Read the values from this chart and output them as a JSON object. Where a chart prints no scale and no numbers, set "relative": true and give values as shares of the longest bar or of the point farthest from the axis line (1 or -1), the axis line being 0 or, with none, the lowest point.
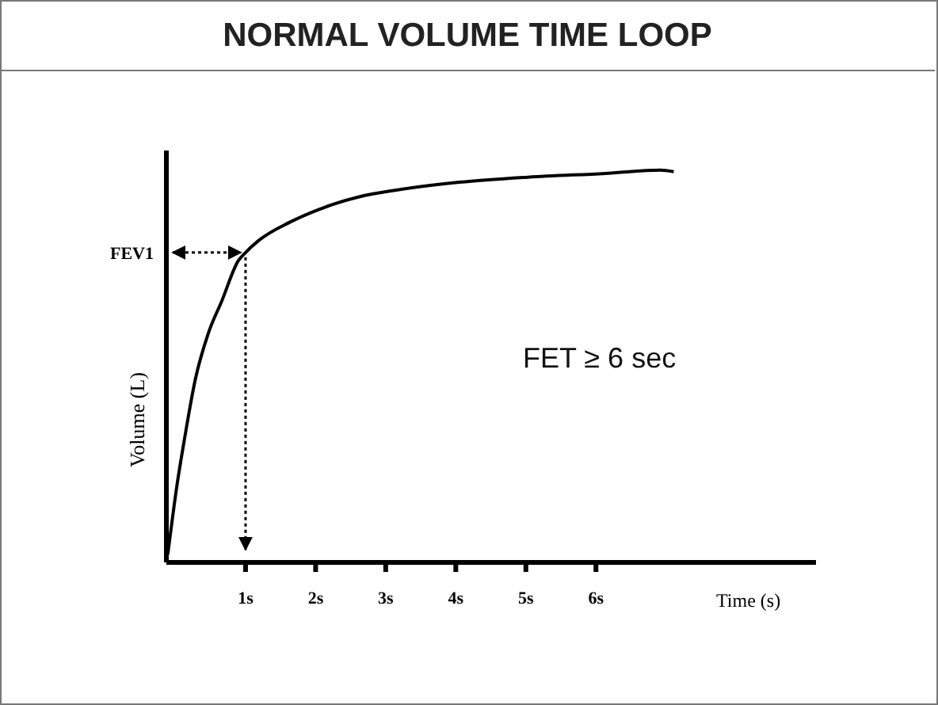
{
  "chart_data": {
    "type": "line",
    "title": "NORMAL VOLUME TIME LOOP",
    "xlabel": "Time (s)",
    "ylabel": "Volume (L)",
    "relative": true,
    "x": [
      -0.11,
      0.02,
      0.13,
      0.28,
      0.47,
      0.66,
      0.9,
      1.0,
      1.19,
      1.64,
      2.02,
      2.62,
      3.15,
      4.05,
      5.03,
      6.17,
      6.92,
      7.11
    ],
    "series": [
      {
        "color": "#000000",
        "values": [
          0.02,
          0.195,
          0.316,
          0.464,
          0.585,
          0.666,
          0.77,
          0.79,
          0.821,
          0.868,
          0.898,
          0.932,
          0.949,
          0.969,
          0.982,
          0.992,
          1.0,
          0.996
        ]
      }
    ],
    "xlim": [
      -0.13,
      9.14
    ],
    "xticks": [
      {
        "value": 1,
        "label": "1s"
      },
      {
        "value": 2,
        "label": "2s"
      },
      {
        "value": 3,
        "label": "3s"
      },
      {
        "value": 4,
        "label": "4s"
      },
      {
        "value": 5,
        "label": "5s"
      },
      {
        "value": 6,
        "label": "6s"
      }
    ],
    "marker": "none",
    "line_style": "solid",
    "ref_lines": [
      {
        "axis": "y",
        "value": 0.79,
        "label": "FEV1",
        "line_style": "dotted"
      },
      {
        "axis": "x",
        "value": 1,
        "line_style": "dotted"
      }
    ],
    "annotations": [
      "FET ≥ 6 sec"
    ]
  }
}
